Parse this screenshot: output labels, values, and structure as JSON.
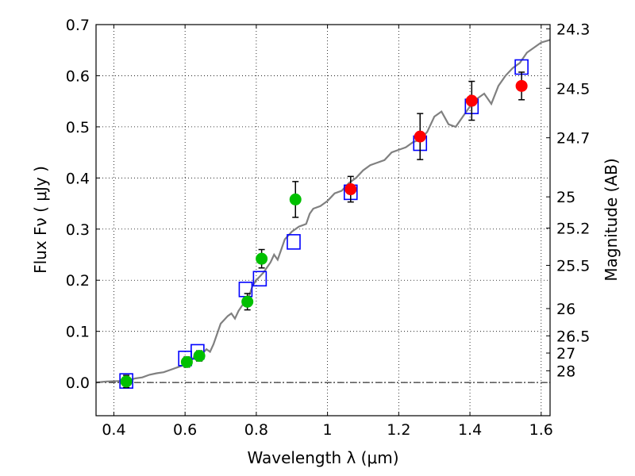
{
  "chart_data": {
    "type": "scatter",
    "xlabel": "Wavelength  λ (μm)",
    "ylabel": "Flux  Fν  ( μJy )",
    "y2label": "Magnitude (AB)",
    "xlim": [
      0.35,
      1.625
    ],
    "ylim": [
      -0.065,
      0.7
    ],
    "grid": true,
    "x_ticks": [
      "0.4",
      "0.6",
      "0.8",
      "1",
      "1.2",
      "1.4",
      "1.6"
    ],
    "x_tick_values": [
      0.4,
      0.6,
      0.8,
      1.0,
      1.2,
      1.4,
      1.6
    ],
    "y_ticks": [
      "0.0",
      "0.1",
      "0.2",
      "0.3",
      "0.4",
      "0.5",
      "0.6",
      "0.7"
    ],
    "y_tick_values": [
      0.0,
      0.1,
      0.2,
      0.3,
      0.4,
      0.5,
      0.6,
      0.7
    ],
    "y2_ticks": [
      "24.3",
      "24.5",
      "24.7",
      "25",
      "25.2",
      "25.5",
      "26",
      "26.5",
      "27",
      "28"
    ],
    "y2_tick_values": [
      24.3,
      24.5,
      24.7,
      25.0,
      25.2,
      25.5,
      26.0,
      26.5,
      27.0,
      28.0
    ],
    "series": [
      {
        "type": "line",
        "color": "#808080",
        "x": [
          0.35,
          0.38,
          0.42,
          0.44,
          0.46,
          0.48,
          0.5,
          0.52,
          0.54,
          0.56,
          0.58,
          0.6,
          0.62,
          0.63,
          0.64,
          0.66,
          0.67,
          0.68,
          0.69,
          0.7,
          0.72,
          0.73,
          0.74,
          0.75,
          0.76,
          0.78,
          0.79,
          0.8,
          0.82,
          0.84,
          0.85,
          0.86,
          0.87,
          0.88,
          0.9,
          0.92,
          0.94,
          0.95,
          0.96,
          0.98,
          1.0,
          1.02,
          1.04,
          1.06,
          1.08,
          1.1,
          1.12,
          1.14,
          1.16,
          1.18,
          1.2,
          1.22,
          1.24,
          1.26,
          1.28,
          1.3,
          1.32,
          1.34,
          1.36,
          1.38,
          1.4,
          1.42,
          1.44,
          1.46,
          1.48,
          1.5,
          1.52,
          1.54,
          1.56,
          1.58,
          1.6,
          1.625
        ],
        "y": [
          0.0,
          0.002,
          0.003,
          0.004,
          0.008,
          0.01,
          0.015,
          0.018,
          0.02,
          0.025,
          0.03,
          0.035,
          0.045,
          0.055,
          0.05,
          0.065,
          0.06,
          0.075,
          0.095,
          0.115,
          0.13,
          0.135,
          0.125,
          0.14,
          0.15,
          0.17,
          0.19,
          0.2,
          0.215,
          0.235,
          0.25,
          0.24,
          0.26,
          0.28,
          0.295,
          0.305,
          0.31,
          0.33,
          0.34,
          0.345,
          0.355,
          0.37,
          0.375,
          0.39,
          0.4,
          0.415,
          0.425,
          0.43,
          0.435,
          0.45,
          0.455,
          0.46,
          0.47,
          0.475,
          0.49,
          0.52,
          0.53,
          0.505,
          0.5,
          0.52,
          0.54,
          0.555,
          0.565,
          0.545,
          0.58,
          0.6,
          0.615,
          0.625,
          0.645,
          0.655,
          0.665,
          0.67
        ]
      },
      {
        "type": "scatter",
        "marker": "square-open",
        "color": "#0000ff",
        "x": [
          0.435,
          0.6,
          0.635,
          0.77,
          0.81,
          0.905,
          1.065,
          1.26,
          1.405,
          1.545
        ],
        "y": [
          0.003,
          0.047,
          0.06,
          0.182,
          0.203,
          0.275,
          0.372,
          0.468,
          0.54,
          0.617
        ]
      },
      {
        "type": "scatter",
        "marker": "circle",
        "color": "#00c000",
        "x": [
          0.435,
          0.605,
          0.64,
          0.775,
          0.815,
          0.91
        ],
        "y": [
          0.002,
          0.04,
          0.052,
          0.158,
          0.242,
          0.358
        ],
        "yerr": [
          0.012,
          0.01,
          0.01,
          0.016,
          0.018,
          0.035
        ]
      },
      {
        "type": "scatter",
        "marker": "circle",
        "color": "#ff0000",
        "x": [
          1.065,
          1.26,
          1.405,
          1.545
        ],
        "y": [
          0.378,
          0.481,
          0.551,
          0.58
        ],
        "yerr": [
          0.025,
          0.045,
          0.038,
          0.027
        ]
      }
    ]
  }
}
